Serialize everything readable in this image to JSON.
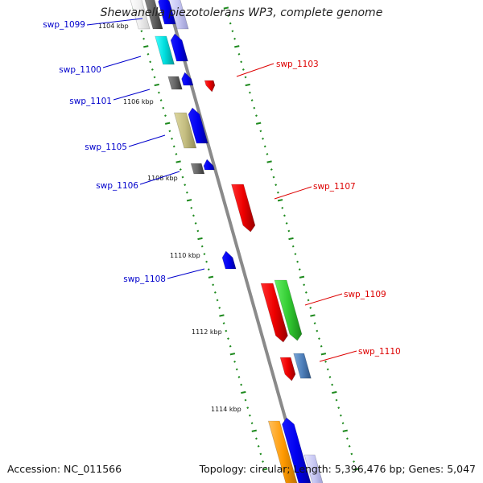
{
  "title": "Shewanella piezotolerans WP3, complete genome",
  "footer": {
    "accession": "Accession: NC_011566",
    "summary": "Topology: circular; Length: 5,396,476 bp; Genes: 5,047"
  },
  "colors": {
    "backbone": "#8a8a8a",
    "forward_label": "#0000cc",
    "reverse_label": "#dd0000",
    "tick": "#1e8a1e"
  },
  "ticks": [
    "1104 kbp",
    "1106 kbp",
    "1108 kbp",
    "1110 kbp",
    "1112 kbp",
    "1114 kbp"
  ],
  "labels_left": [
    "swp_1099",
    "swp_1100",
    "swp_1101",
    "swp_1105",
    "swp_1106",
    "swp_1108"
  ],
  "labels_right": [
    "swp_1103",
    "swp_1107",
    "swp_1109",
    "swp_1110"
  ]
}
